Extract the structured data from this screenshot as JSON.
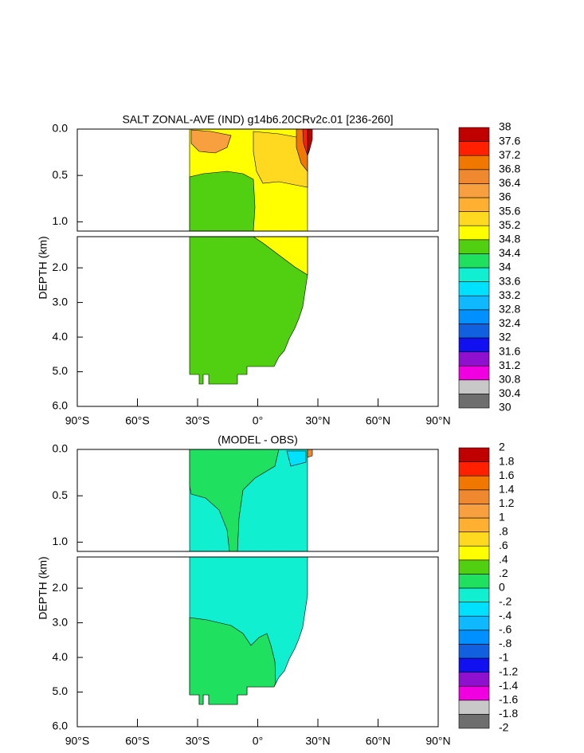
{
  "chart_data": [
    {
      "type": "contour",
      "title": "SALT ZONAL-AVE (IND) g14b6.20CRv2c.01 [236-260]",
      "y_label": "DEPTH (km)",
      "xlim": [
        -90,
        90
      ],
      "xticks": [
        {
          "value": -90,
          "label": "90°S"
        },
        {
          "value": -60,
          "label": "60°S"
        },
        {
          "value": -30,
          "label": "30°S"
        },
        {
          "value": 0,
          "label": "0°"
        },
        {
          "value": 30,
          "label": "30°N"
        },
        {
          "value": 60,
          "label": "60°N"
        },
        {
          "value": 90,
          "label": "90°N"
        }
      ],
      "panels": [
        {
          "ylim": [
            0,
            1.1
          ],
          "yticks": [
            {
              "value": 0,
              "label": "0.0"
            },
            {
              "value": 0.5,
              "label": "0.5"
            },
            {
              "value": 1,
              "label": "1.0"
            }
          ]
        },
        {
          "ylim": [
            1.1,
            6
          ],
          "yticks": [
            {
              "value": 2,
              "label": "2.0"
            },
            {
              "value": 3,
              "label": "3.0"
            },
            {
              "value": 4,
              "label": "4.0"
            },
            {
              "value": 5,
              "label": "5.0"
            },
            {
              "value": 6,
              "label": "6.0"
            }
          ]
        }
      ],
      "colorbar": {
        "levels": [
          30,
          30.4,
          30.8,
          31.2,
          31.6,
          32,
          32.4,
          32.8,
          33.2,
          33.6,
          34,
          34.4,
          34.8,
          35.2,
          35.6,
          36,
          36.4,
          36.8,
          37.2,
          37.6,
          38
        ],
        "colors": [
          "#6e6e6e",
          "#c8c8c8",
          "#f000e0",
          "#9010d0",
          "#1010f0",
          "#1060e0",
          "#0090ff",
          "#10b8ff",
          "#00e0ff",
          "#10f0d0",
          "#20e060",
          "#50d010",
          "#ffff00",
          "#ffd820",
          "#ffb030",
          "#f8a040",
          "#f08830",
          "#f07800",
          "#ff2000",
          "#c00000"
        ]
      }
    },
    {
      "type": "contour",
      "title": "(MODEL - OBS)",
      "y_label": "DEPTH (km)",
      "xlim": [
        -90,
        90
      ],
      "xticks": [
        {
          "value": -90,
          "label": "90°S"
        },
        {
          "value": -60,
          "label": "60°S"
        },
        {
          "value": -30,
          "label": "30°S"
        },
        {
          "value": 0,
          "label": "0°"
        },
        {
          "value": 30,
          "label": "30°N"
        },
        {
          "value": 60,
          "label": "60°N"
        },
        {
          "value": 90,
          "label": "90°N"
        }
      ],
      "panels": [
        {
          "ylim": [
            0,
            1.1
          ],
          "yticks": [
            {
              "value": 0,
              "label": "0.0"
            },
            {
              "value": 0.5,
              "label": "0.5"
            },
            {
              "value": 1,
              "label": "1.0"
            }
          ]
        },
        {
          "ylim": [
            1.1,
            6
          ],
          "yticks": [
            {
              "value": 2,
              "label": "2.0"
            },
            {
              "value": 3,
              "label": "3.0"
            },
            {
              "value": 4,
              "label": "4.0"
            },
            {
              "value": 5,
              "label": "5.0"
            },
            {
              "value": 6,
              "label": "6.0"
            }
          ]
        }
      ],
      "colorbar": {
        "levels": [
          -2,
          -1.8,
          -1.6,
          -1.4,
          -1.2,
          -1,
          {
            "value": -0.8,
            "label": "-.8"
          },
          {
            "value": -0.6,
            "label": "-.6"
          },
          {
            "value": -0.4,
            "label": "-.4"
          },
          {
            "value": -0.2,
            "label": "-.2"
          },
          0,
          {
            "value": 0.2,
            "label": ".2"
          },
          {
            "value": 0.4,
            "label": ".4"
          },
          {
            "value": 0.6,
            "label": ".6"
          },
          {
            "value": 0.8,
            "label": ".8"
          },
          1,
          1.2,
          1.4,
          1.6,
          1.8,
          2
        ],
        "colors": [
          "#6e6e6e",
          "#c8c8c8",
          "#f000e0",
          "#9010d0",
          "#1010f0",
          "#1060e0",
          "#0090ff",
          "#10b8ff",
          "#00e0ff",
          "#10f0d0",
          "#20e060",
          "#50d010",
          "#ffff00",
          "#ffd820",
          "#ffb030",
          "#f8a040",
          "#f08830",
          "#f07800",
          "#ff2000",
          "#c00000"
        ]
      }
    }
  ]
}
